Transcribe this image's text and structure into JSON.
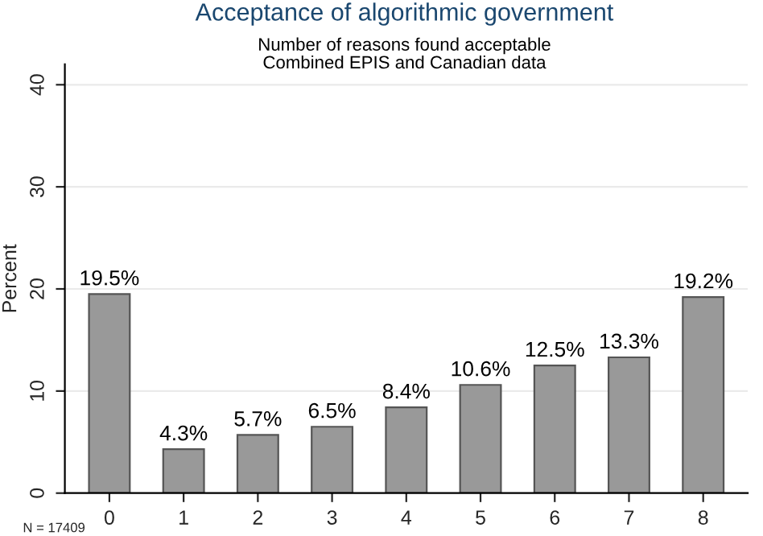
{
  "chart_data": {
    "type": "bar",
    "title": "Acceptance of algorithmic government",
    "subtitle": "Number of reasons found acceptable\nCombined EPIS and Canadian data",
    "ylabel": "Percent",
    "categories": [
      "0",
      "1",
      "2",
      "3",
      "4",
      "5",
      "6",
      "7",
      "8"
    ],
    "values": [
      19.5,
      4.3,
      5.7,
      6.5,
      8.4,
      10.6,
      12.5,
      13.3,
      19.2
    ],
    "value_labels": [
      "19.5%",
      "4.3%",
      "5.7%",
      "6.5%",
      "8.4%",
      "10.6%",
      "12.5%",
      "13.3%",
      "19.2%"
    ],
    "color": "#999999",
    "ylim": [
      0,
      42
    ],
    "yticks": [
      0,
      10,
      20,
      30,
      40
    ],
    "grid": "y",
    "annotations": [
      "N = 17409"
    ]
  }
}
